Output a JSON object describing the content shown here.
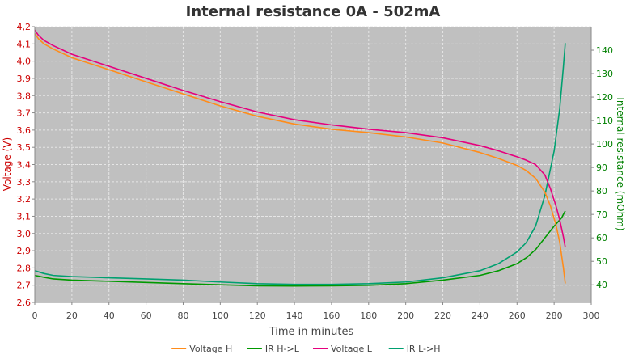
{
  "chart_data": {
    "type": "line",
    "title": "Internal resistance  0A - 502mA",
    "xlabel": "Time in minutes",
    "ylabel": "Voltage (V)",
    "y2label": "Internal resistance (mOhm)",
    "xlim": [
      0,
      300
    ],
    "ylim": [
      2.6,
      4.2
    ],
    "y2lim": [
      32.5,
      150
    ],
    "x_ticks": [
      0,
      20,
      40,
      60,
      80,
      100,
      120,
      140,
      160,
      180,
      200,
      220,
      240,
      260,
      280,
      300
    ],
    "y_ticks": [
      "2,6",
      "2,7",
      "2,8",
      "2,9",
      "3,0",
      "3,1",
      "3,2",
      "3,3",
      "3,4",
      "3,5",
      "3,6",
      "3,7",
      "3,8",
      "3,9",
      "4,0",
      "4,1",
      "4,2"
    ],
    "y2_ticks": [
      40,
      50,
      60,
      70,
      80,
      90,
      100,
      110,
      120,
      130,
      140
    ],
    "grid": true,
    "legend_position": "bottom",
    "colors": {
      "plot_bg": "#c0c0c0",
      "grid": "#e6e6e6",
      "left_axis": "#cc0000",
      "right_axis": "#008000"
    },
    "series": [
      {
        "name": "Voltage H",
        "axis": "left",
        "color": "#ff8c1a",
        "x": [
          0,
          2,
          5,
          10,
          20,
          40,
          60,
          80,
          100,
          120,
          140,
          160,
          180,
          200,
          220,
          240,
          250,
          260,
          265,
          270,
          275,
          278,
          281,
          283,
          285,
          286
        ],
        "y": [
          4.16,
          4.13,
          4.1,
          4.07,
          4.02,
          3.95,
          3.88,
          3.81,
          3.74,
          3.68,
          3.635,
          3.605,
          3.585,
          3.56,
          3.525,
          3.47,
          3.435,
          3.395,
          3.365,
          3.32,
          3.24,
          3.16,
          3.05,
          2.95,
          2.8,
          2.71
        ]
      },
      {
        "name": "IR H->L",
        "axis": "right",
        "color": "#009900",
        "x": [
          0,
          5,
          10,
          20,
          40,
          60,
          80,
          100,
          120,
          140,
          160,
          180,
          200,
          220,
          240,
          250,
          260,
          265,
          270,
          275,
          280,
          284,
          286
        ],
        "y": [
          44,
          43.2,
          42.5,
          42,
          41.5,
          41,
          40.5,
          40,
          39.6,
          39.5,
          39.6,
          39.8,
          40.5,
          42,
          44,
          46,
          49,
          51.5,
          55,
          60,
          65,
          68.5,
          71.5
        ]
      },
      {
        "name": "Voltage L",
        "axis": "left",
        "color": "#e6007e",
        "x": [
          0,
          2,
          5,
          10,
          20,
          40,
          60,
          80,
          100,
          120,
          140,
          160,
          180,
          200,
          220,
          240,
          250,
          260,
          265,
          270,
          275,
          278,
          281,
          283,
          285,
          286
        ],
        "y": [
          4.18,
          4.15,
          4.12,
          4.09,
          4.04,
          3.97,
          3.9,
          3.83,
          3.765,
          3.705,
          3.66,
          3.63,
          3.605,
          3.585,
          3.555,
          3.51,
          3.48,
          3.445,
          3.425,
          3.4,
          3.34,
          3.26,
          3.16,
          3.08,
          2.98,
          2.92
        ]
      },
      {
        "name": "IR L->H",
        "axis": "right",
        "color": "#00a070",
        "x": [
          0,
          5,
          10,
          20,
          40,
          60,
          80,
          100,
          120,
          140,
          160,
          180,
          200,
          220,
          240,
          250,
          260,
          265,
          270,
          275,
          280,
          283,
          285,
          286
        ],
        "y": [
          46,
          44.8,
          44,
          43.5,
          43,
          42.5,
          42,
          41.2,
          40.5,
          40.2,
          40.2,
          40.5,
          41.2,
          43,
          46,
          49,
          54,
          58,
          65,
          78,
          97,
          115,
          133,
          143
        ]
      }
    ]
  }
}
